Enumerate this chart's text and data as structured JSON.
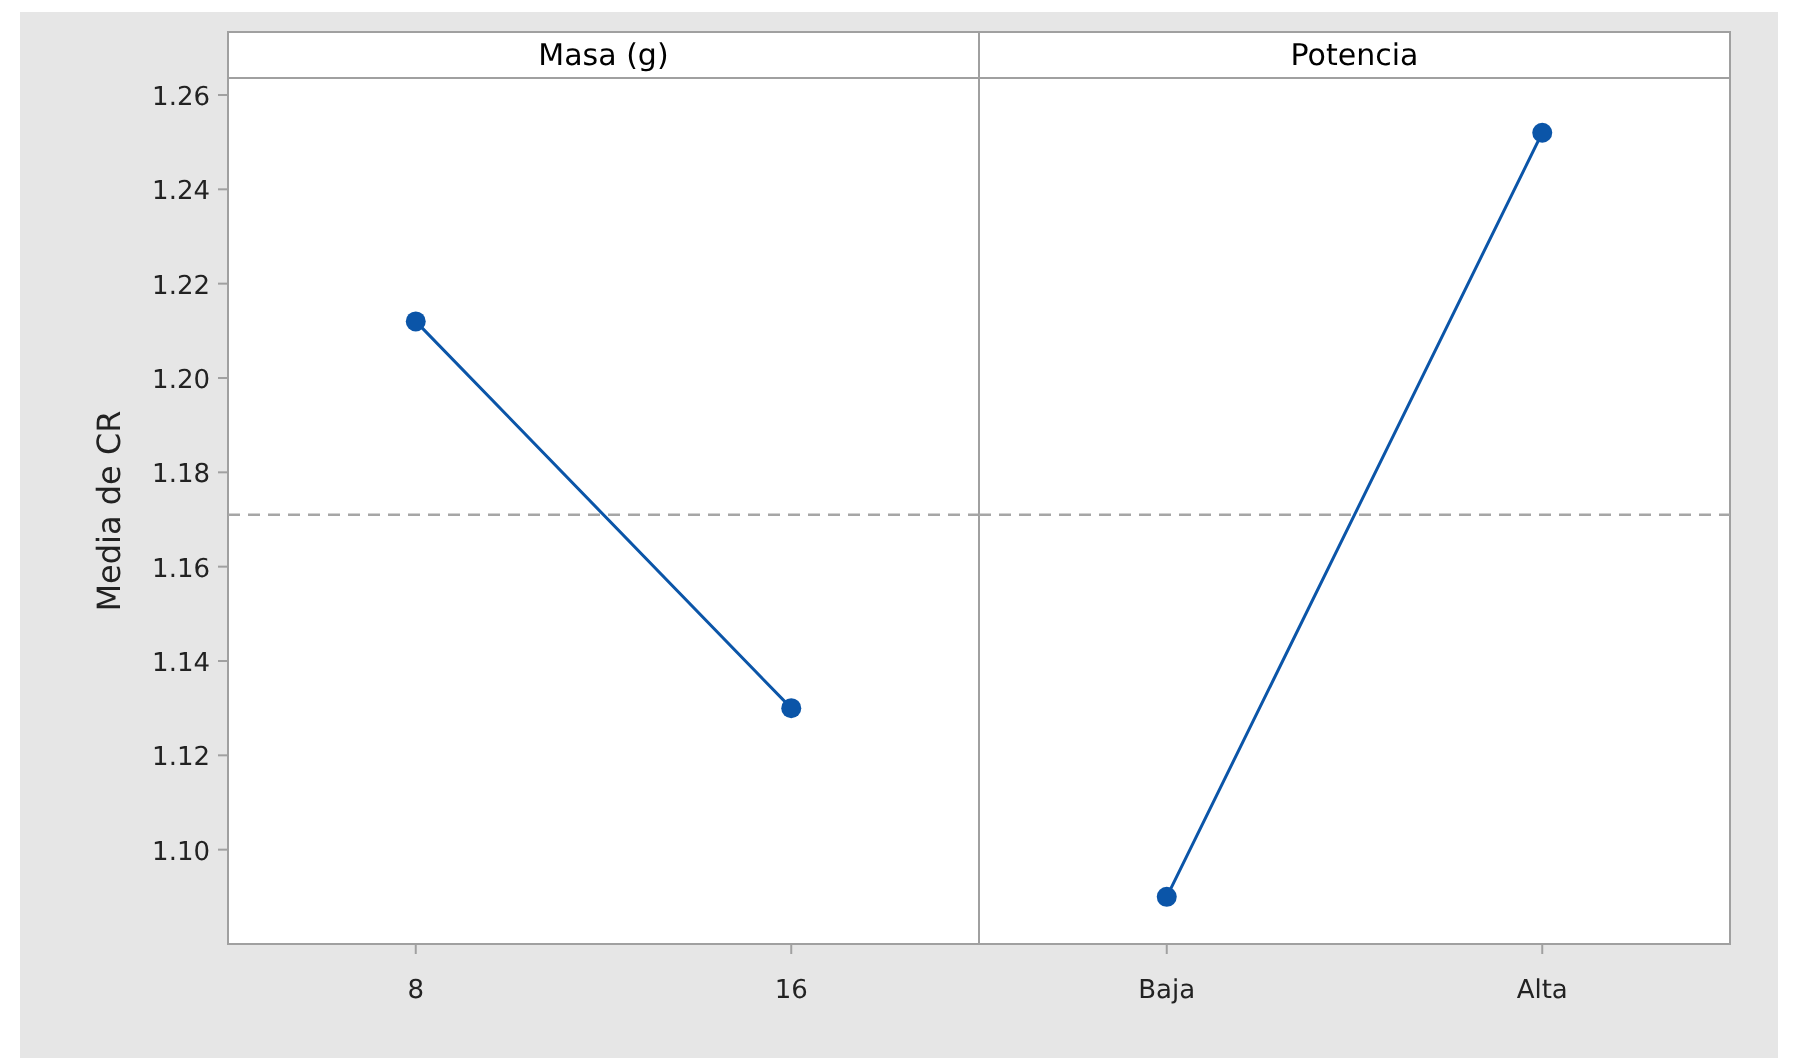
{
  "chart_data": [
    {
      "type": "line",
      "title": "Masa (g)",
      "ylabel": "Media de CR",
      "categories": [
        "8",
        "16"
      ],
      "series": [
        {
          "color": "#0b55a8",
          "values": [
            1.212,
            1.13
          ]
        }
      ],
      "marker": "circle",
      "ylim": [
        1.08,
        1.2636
      ],
      "yticks": [
        {
          "value": 1.1,
          "label": "1.10"
        },
        {
          "value": 1.12,
          "label": "1.12"
        },
        {
          "value": 1.14,
          "label": "1.14"
        },
        {
          "value": 1.16,
          "label": "1.16"
        },
        {
          "value": 1.18,
          "label": "1.18"
        },
        {
          "value": 1.2,
          "label": "1.20"
        },
        {
          "value": 1.22,
          "label": "1.22"
        },
        {
          "value": 1.24,
          "label": "1.24"
        },
        {
          "value": 1.26,
          "label": "1.26"
        }
      ],
      "ref_lines": [
        {
          "axis": "y",
          "value": 1.171,
          "line_style": "dashed",
          "color": "#a6a6a6"
        }
      ]
    },
    {
      "type": "line",
      "title": "Potencia",
      "categories": [
        "Baja",
        "Alta"
      ],
      "series": [
        {
          "color": "#0b55a8",
          "values": [
            1.09,
            1.252
          ]
        }
      ],
      "marker": "circle",
      "ylim": [
        1.08,
        1.2636
      ],
      "yticks": [
        {
          "value": 1.1,
          "label": null
        },
        {
          "value": 1.12,
          "label": null
        },
        {
          "value": 1.14,
          "label": null
        },
        {
          "value": 1.16,
          "label": null
        },
        {
          "value": 1.18,
          "label": null
        },
        {
          "value": 1.2,
          "label": null
        },
        {
          "value": 1.22,
          "label": null
        },
        {
          "value": 1.24,
          "label": null
        },
        {
          "value": 1.26,
          "label": null
        }
      ],
      "tick_labels": "x",
      "ref_lines": [
        {
          "axis": "y",
          "value": 1.171,
          "line_style": "dashed",
          "color": "#a6a6a6"
        }
      ]
    }
  ]
}
